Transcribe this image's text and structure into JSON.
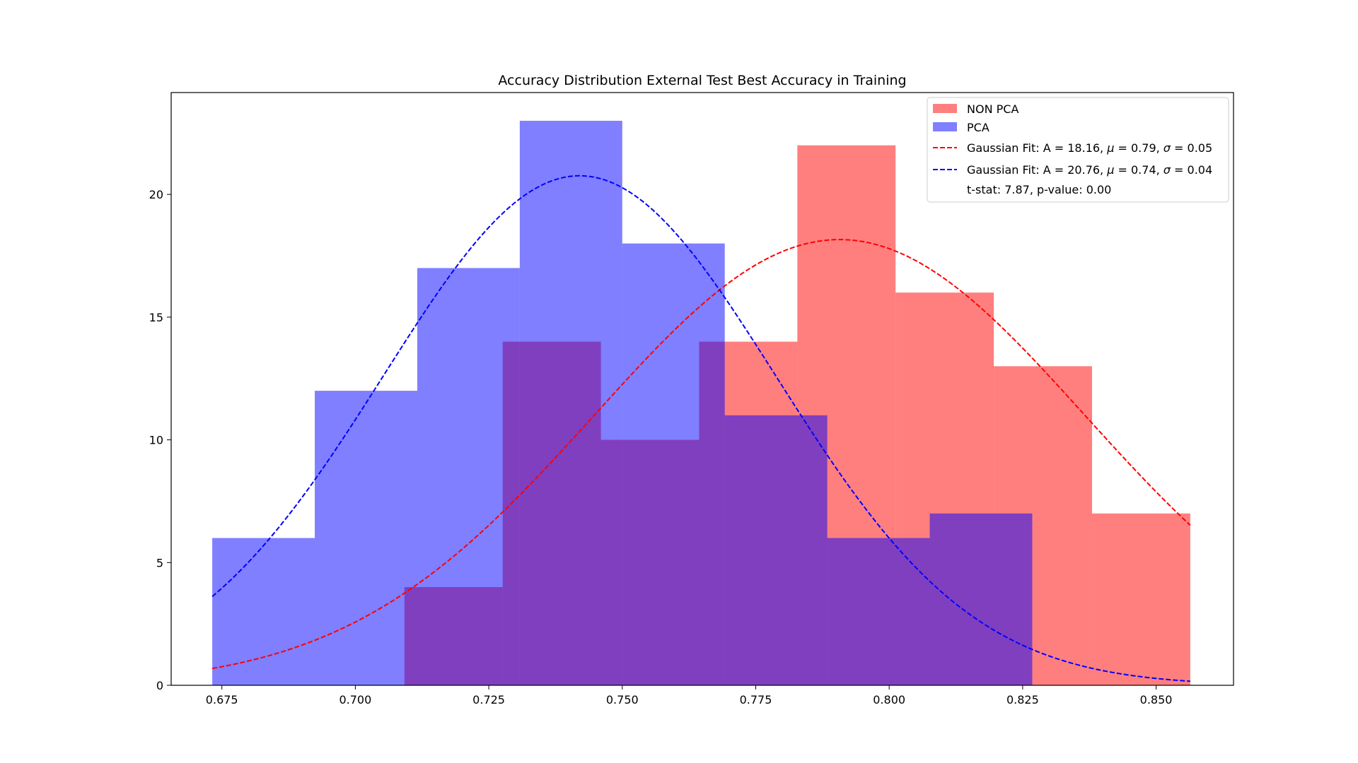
{
  "chart_data": {
    "type": "bar",
    "title": "Accuracy Distribution External Test Best Accuracy in Training",
    "xlabel": "",
    "ylabel": "",
    "xlim": [
      0.6655,
      0.8645
    ],
    "ylim": [
      0,
      24.15
    ],
    "grid": false,
    "legend_position": "top-right",
    "x_ticks": [
      "0.675",
      "0.700",
      "0.725",
      "0.750",
      "0.775",
      "0.800",
      "0.825",
      "0.850"
    ],
    "y_ticks": [
      "0",
      "5",
      "10",
      "15",
      "20"
    ],
    "series": [
      {
        "name": "NON PCA",
        "kind": "histogram",
        "color": "#ff0000",
        "opacity": 0.5,
        "bin_edges": [
          0.7092,
          0.7276,
          0.746,
          0.7644,
          0.7828,
          0.8012,
          0.8196,
          0.838,
          0.8564
        ],
        "counts": [
          4,
          14,
          10,
          14,
          22,
          16,
          13,
          7
        ]
      },
      {
        "name": "PCA",
        "kind": "histogram",
        "color": "#0000ff",
        "opacity": 0.5,
        "bin_edges": [
          0.6732,
          0.6924,
          0.7116,
          0.7308,
          0.75,
          0.7692,
          0.7884,
          0.8076,
          0.8268
        ],
        "counts": [
          6,
          12,
          17,
          23,
          18,
          11,
          6,
          7
        ]
      },
      {
        "name": "Gaussian Fit: A = 18.16, μ = 0.79, σ = 0.05",
        "kind": "gaussian",
        "color": "#ff0000",
        "dashed": true,
        "A": 18.16,
        "mu": 0.7907,
        "sigma": 0.0459,
        "x_range": [
          0.6732,
          0.8564
        ]
      },
      {
        "name": "Gaussian Fit: A = 20.76, μ = 0.74, σ = 0.04",
        "kind": "gaussian",
        "color": "#0000ff",
        "dashed": true,
        "A": 20.76,
        "mu": 0.742,
        "sigma": 0.0368,
        "x_range": [
          0.6732,
          0.8564
        ]
      }
    ],
    "annotation": "t-stat: 7.87, p-value: 0.00"
  },
  "legend": {
    "items": [
      {
        "kind": "patch",
        "color": "#ff0000",
        "prefix": "NON PCA",
        "suffix": ""
      },
      {
        "kind": "patch",
        "color": "#0000ff",
        "prefix": "PCA",
        "suffix": ""
      },
      {
        "kind": "line",
        "color": "#ff0000",
        "prefix": "Gaussian Fit: A = 18.16, ",
        "mu": "μ",
        "mid": " = 0.79, ",
        "sigma": "σ",
        "suffix": " = 0.05"
      },
      {
        "kind": "line",
        "color": "#0000ff",
        "prefix": "Gaussian Fit: A = 20.76, ",
        "mu": "μ",
        "mid": " = 0.74, ",
        "sigma": "σ",
        "suffix": " = 0.04"
      },
      {
        "kind": "none",
        "color": "",
        "prefix": "t-stat: 7.87, p-value: 0.00",
        "suffix": ""
      }
    ]
  }
}
